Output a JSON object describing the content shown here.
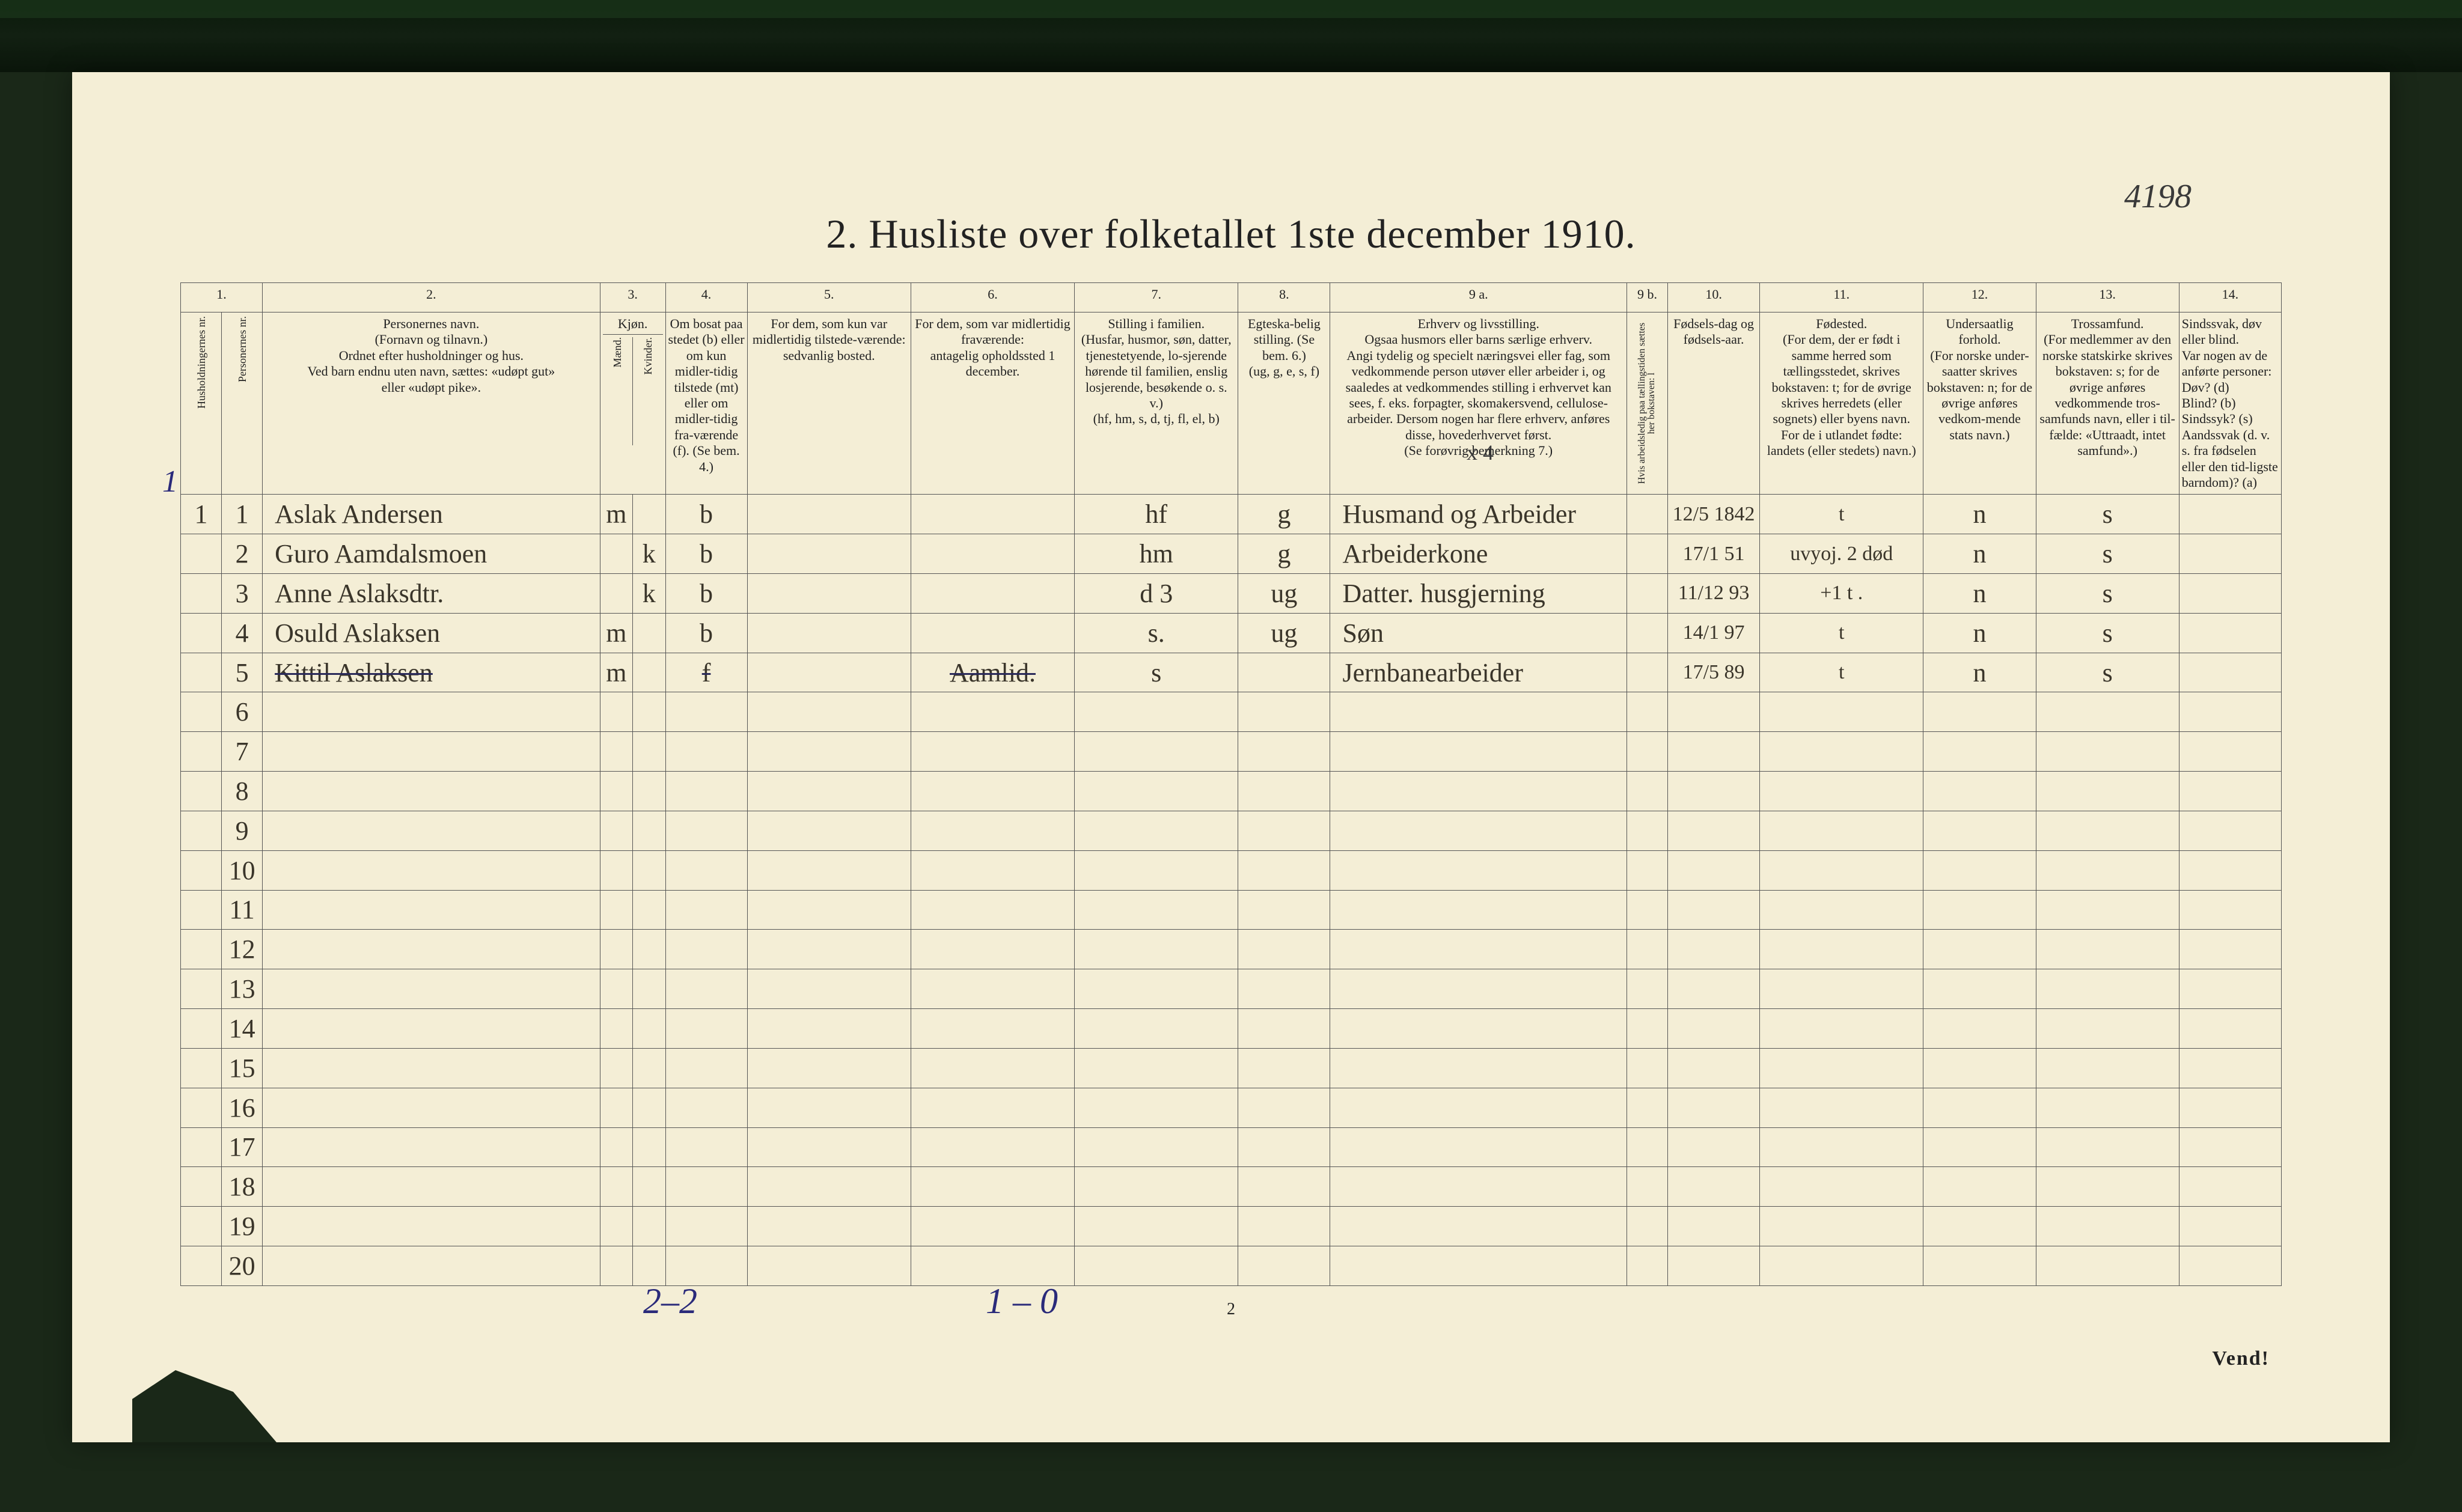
{
  "page_ref": "4198",
  "title": "2.  Husliste over folketallet 1ste december 1910.",
  "margin_number": "1",
  "x4": "x 4",
  "bottom_left": "2–2",
  "bottom_right": "1 – 0",
  "page_number": "2",
  "vend": "Vend!",
  "colors": {
    "paper": "#f4eed6",
    "ink": "#222222",
    "script": "#3a352a",
    "red": "#b03030",
    "blue": "#2a2a7a",
    "rule": "#555555",
    "background": "#1a2818"
  },
  "column_widths_pct": [
    2.0,
    2.0,
    16.5,
    1.6,
    1.6,
    4.0,
    8.0,
    8.0,
    8.0,
    4.5,
    14.5,
    2.0,
    4.5,
    8.0,
    5.5,
    7.0,
    5.0
  ],
  "header": {
    "colnums": [
      "1.",
      "2.",
      "3.",
      "4.",
      "5.",
      "6.",
      "7.",
      "8.",
      "9 a.",
      "9 b.",
      "10.",
      "11.",
      "12.",
      "13.",
      "14."
    ],
    "col1": "Husholdningernes nr.",
    "col1b": "Personernes nr.",
    "col2": "Personernes navn.\n(Fornavn og tilnavn.)\nOrdnet efter husholdninger og hus.\nVed barn endnu uten navn, sættes: «udøpt gut»\neller «udøpt pike».",
    "col3": "Kjøn.",
    "col3a": "Mænd.",
    "col3b": "Kvinder.",
    "col4": "Om bosat paa stedet (b) eller om kun midler-tidig tilstede (mt) eller om midler-tidig fra-værende (f). (Se bem. 4.)",
    "col5": "For dem, som kun var midlertidig tilstede-værende:\nsedvanlig bosted.",
    "col6": "For dem, som var midlertidig fraværende:\nantagelig opholdssted 1 december.",
    "col7": "Stilling i familien.\n(Husfar, husmor, søn, datter, tjenestetyende, lo-sjerende hørende til familien, enslig losjerende, besøkende o. s. v.)\n(hf, hm, s, d, tj, fl, el, b)",
    "col8": "Egteska-belig stilling. (Se bem. 6.)\n(ug, g, e, s, f)",
    "col9a": "Erhverv og livsstilling.\nOgsaa husmors eller barns særlige erhverv.\nAngi tydelig og specielt næringsvei eller fag, som vedkommende person utøver eller arbeider i, og saaledes at vedkommendes stilling i erhvervet kan sees, f. eks. forpagter, skomakersvend, cellulose-arbeider. Dersom nogen har flere erhverv, anføres disse, hovederhvervet først.\n(Se forøvrig bemerkning 7.)",
    "col9b": "Hvis arbeidsledig paa tællingstiden sættes her bokstaven: l",
    "col10": "Fødsels-dag og fødsels-aar.",
    "col11": "Fødested.\n(For dem, der er født i samme herred som tællingsstedet, skrives bokstaven: t; for de øvrige skrives herredets (eller sognets) eller byens navn. For de i utlandet fødte: landets (eller stedets) navn.)",
    "col12": "Undersaatlig forhold.\n(For norske under-saatter skrives bokstaven: n; for de øvrige anføres vedkom-mende stats navn.)",
    "col13": "Trossamfund.\n(For medlemmer av den norske statskirke skrives bokstaven: s; for de øvrige anføres vedkommende tros-samfunds navn, eller i til-fælde: «Uttraadt, intet samfund».)",
    "col14": "Sindssvak, døv eller blind.\nVar nogen av de anførte personer:\nDøv?        (d)\nBlind?      (b)\nSindssyk?   (s)\nAandssvak (d. v. s. fra fødselen eller den tid-ligste barndom)?  (a)"
  },
  "rows": [
    {
      "hh": "1",
      "pn": "1",
      "name": "Aslak Andersen",
      "m": "m",
      "k": "",
      "res": "b",
      "sed": "",
      "opp": "",
      "fam": "hf",
      "egt": "g",
      "erhv": "Husmand og Arbeider",
      "al": "",
      "fdt": "12/5 1842",
      "fsted": "t",
      "und": "n",
      "tro": "s",
      "sind": ""
    },
    {
      "hh": "",
      "pn": "2",
      "name": "Guro Aamdalsmoen",
      "m": "",
      "k": "k",
      "res": "b",
      "sed": "",
      "opp": "",
      "fam": "hm",
      "egt": "g",
      "erhv": "Arbeiderkone",
      "al": "",
      "fdt": "17/1 51",
      "fsted": "uvyoj. 2 død",
      "fsted_red": true,
      "und": "n",
      "tro": "s",
      "sind": ""
    },
    {
      "hh": "",
      "pn": "3",
      "name": "Anne Aslaksdtr.",
      "m": "",
      "k": "k",
      "res": "b",
      "sed": "",
      "opp": "",
      "fam": "d",
      "fam_extra": "3",
      "egt": "ug",
      "erhv": "Datter. husgjerning",
      "al": "",
      "fdt": "11/12 93",
      "fsted": "+1  t .",
      "und": "n",
      "tro": "s",
      "sind": ""
    },
    {
      "hh": "",
      "pn": "4",
      "name": "Osuld Aslaksen",
      "m": "m",
      "k": "",
      "res": "b",
      "sed": "",
      "opp": "",
      "fam": "s.",
      "egt": "ug",
      "erhv": "Søn",
      "al": "",
      "fdt": "14/1 97",
      "fsted": "t",
      "und": "n",
      "tro": "s",
      "sind": ""
    },
    {
      "hh": "",
      "pn": "5",
      "name": "Kittil Aslaksen",
      "struck": true,
      "m": "m",
      "k": "",
      "res": "f",
      "sed": "",
      "opp": "Aamlid.",
      "fam": "s",
      "egt": "",
      "erhv": "Jernbanearbeider",
      "al": "",
      "fdt": "17/5 89",
      "fsted": "t",
      "und": "n",
      "tro": "s",
      "sind": ""
    }
  ],
  "empty_row_count": 15,
  "first_empty_rownum": 6
}
